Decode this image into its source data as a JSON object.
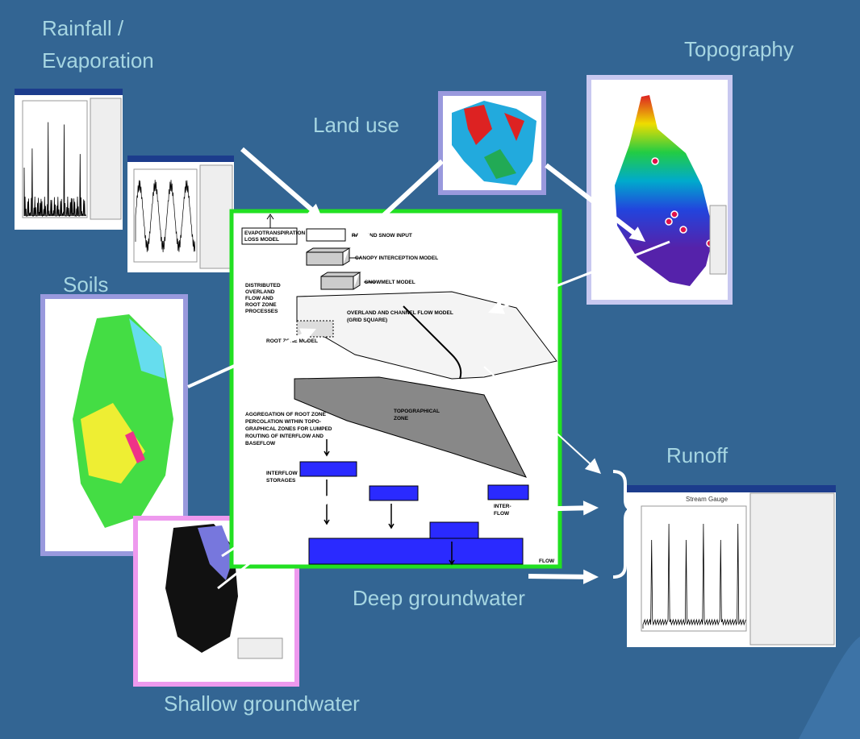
{
  "labels": {
    "rainfall": [
      "Rainfall /",
      "Evaporation"
    ],
    "topography": "Topography",
    "land_use": "Land use",
    "soils": "Soils",
    "runoff": "Runoff",
    "deep_groundwater": "Deep groundwater",
    "shallow_groundwater": "Shallow groundwater"
  },
  "diagram": {
    "evapotranspiration": [
      "EVAPOTRANSPIRATION",
      "LOSS MODEL"
    ],
    "rain_snow": "RAIN AND SNOW INPUT",
    "canopy": "CANOPY INTERCEPTION MODEL",
    "snowmelt": "SNOWMELT MODEL",
    "distributed": [
      "DISTRIBUTED",
      "OVERLAND",
      "FLOW AND",
      "ROOT ZONE",
      "PROCESSES"
    ],
    "overland": [
      "OVERLAND AND CHANNEL FLOW MODEL",
      "(GRID SQUARE)"
    ],
    "root_zone": "ROOT ZONE MODEL",
    "topo_zone": [
      "TOPOGRAPHICAL",
      "ZONE"
    ],
    "aggregation": [
      "AGGREGATION OF ROOT ZONE",
      "PERCOLATION WITHIN TOPO-",
      "GRAPHICAL ZONES FOR LUMPED",
      "ROUTING OF INTERFLOW AND",
      "BASEFLOW"
    ],
    "interflow_storages": [
      "INTERFLOW",
      "STORAGES"
    ],
    "interflow": [
      "INTER-",
      "FLOW"
    ],
    "flow": "FLOW"
  },
  "runoff_window": {
    "title": "Stream Gauge"
  }
}
